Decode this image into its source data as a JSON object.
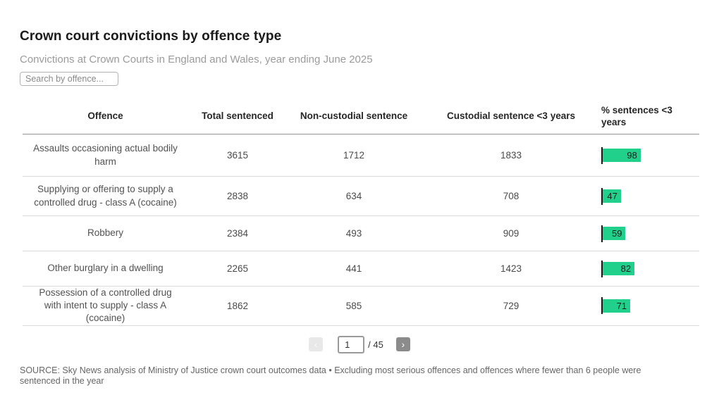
{
  "page": {
    "title": "Crown court convictions by offence type",
    "subtitle": "Convictions at Crown Courts in England and Wales, year ending June 2025",
    "search_placeholder": "Search by offence...",
    "source": "SOURCE: Sky News analysis of Ministry of Justice crown court outcomes data • Excluding most serious offences and offences where fewer than 6 people were sentenced in the year"
  },
  "table": {
    "columns": [
      "Offence",
      "Total sentenced",
      "Non-custodial sentence",
      "Custodial sentence <3 years",
      "% sentences <3 years"
    ],
    "rows": [
      {
        "offence": "Assaults occasioning actual bodily harm",
        "total": "3615",
        "non_custodial": "1712",
        "custodial": "1833",
        "pct": 98
      },
      {
        "offence": "Supplying or offering to supply a controlled drug - class A (cocaine)",
        "total": "2838",
        "non_custodial": "634",
        "custodial": "708",
        "pct": 47
      },
      {
        "offence": "Robbery",
        "total": "2384",
        "non_custodial": "493",
        "custodial": "909",
        "pct": 59
      },
      {
        "offence": "Other burglary in a dwelling",
        "total": "2265",
        "non_custodial": "441",
        "custodial": "1423",
        "pct": 82
      },
      {
        "offence": "Possession of a controlled drug with intent to supply - class A (cocaine)",
        "total": "1862",
        "non_custodial": "585",
        "custodial": "729",
        "pct": 71
      }
    ]
  },
  "pagination": {
    "prev": "‹",
    "page": "1",
    "of": "/ 45",
    "next": "›"
  },
  "colors": {
    "bar_green": "#21d08b",
    "bar_axis": "#191919"
  },
  "chart_data": {
    "type": "table",
    "title": "Crown court convictions by offence type",
    "subtitle": "Convictions at Crown Courts in England and Wales, year ending June 2025",
    "columns": [
      "Offence",
      "Total sentenced",
      "Non-custodial sentence",
      "Custodial sentence <3 years",
      "% sentences <3 years"
    ],
    "rows": [
      [
        "Assaults occasioning actual bodily harm",
        3615,
        1712,
        1833,
        98
      ],
      [
        "Supplying or offering to supply a controlled drug - class A (cocaine)",
        2838,
        634,
        708,
        47
      ],
      [
        "Robbery",
        2384,
        493,
        909,
        59
      ],
      [
        "Other burglary in a dwelling",
        2265,
        441,
        1423,
        82
      ],
      [
        "Possession of a controlled drug with intent to supply - class A (cocaine)",
        1862,
        585,
        729,
        71
      ]
    ],
    "bar_column": "% sentences <3 years",
    "bar_range": [
      0,
      100
    ],
    "bar_color": "#21d08b",
    "page": 1,
    "total_pages": 45,
    "legend_position": "none",
    "grid": false
  }
}
